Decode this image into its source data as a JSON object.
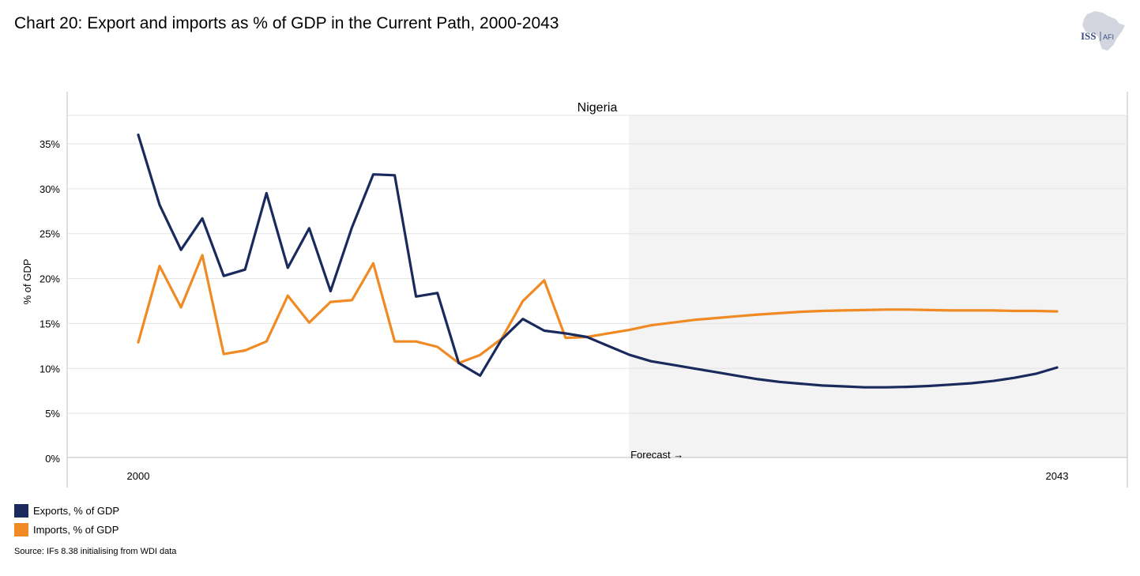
{
  "title": "Chart 20: Export and imports as % of GDP in the Current Path, 2000-2043",
  "logo": {
    "primary": "ISS",
    "secondary": "AFI"
  },
  "source": "Source: IFs 8.38 initialising from WDI data",
  "colors": {
    "exports": "#1b2a5c",
    "imports": "#f08a24",
    "forecast_shade": "#f3f3f3",
    "grid": "#e3e3e3",
    "axis": "#bfbfbf"
  },
  "chart_data": {
    "type": "line",
    "panel_title": "Nigeria",
    "ylabel": "% of GDP",
    "xlabel": "",
    "xlim": [
      2000,
      2043
    ],
    "ylim": [
      0,
      38
    ],
    "y_ticks": [
      0,
      5,
      10,
      15,
      20,
      25,
      30,
      35
    ],
    "y_tick_labels": [
      "0%",
      "5%",
      "10%",
      "15%",
      "20%",
      "25%",
      "30%",
      "35%"
    ],
    "x_tick_labels": [
      {
        "x": 2000,
        "label": "2000"
      },
      {
        "x": 2043,
        "label": "2043"
      }
    ],
    "forecast_start": 2023,
    "forecast_label": "Forecast →",
    "legend_position": "bottom-left",
    "series": [
      {
        "name": "Exports, % of GDP",
        "key": "exports",
        "x": [
          2000,
          2001,
          2002,
          2003,
          2004,
          2005,
          2006,
          2007,
          2008,
          2009,
          2010,
          2011,
          2012,
          2013,
          2014,
          2015,
          2016,
          2017,
          2018,
          2019,
          2020,
          2021,
          2022,
          2023,
          2024,
          2025,
          2026,
          2027,
          2028,
          2029,
          2030,
          2031,
          2032,
          2033,
          2034,
          2035,
          2036,
          2037,
          2038,
          2039,
          2040,
          2041,
          2042,
          2043
        ],
        "values": [
          36.0,
          28.2,
          23.2,
          26.7,
          20.3,
          21.0,
          29.5,
          21.2,
          25.6,
          18.6,
          25.7,
          31.6,
          31.5,
          18.0,
          18.4,
          10.6,
          9.2,
          13.2,
          15.5,
          14.2,
          13.9,
          13.5,
          12.5,
          11.5,
          10.8,
          10.4,
          10.0,
          9.6,
          9.2,
          8.8,
          8.5,
          8.3,
          8.1,
          8.0,
          7.9,
          7.9,
          7.95,
          8.05,
          8.2,
          8.35,
          8.6,
          8.95,
          9.4,
          10.1
        ]
      },
      {
        "name": "Imports, % of GDP",
        "key": "imports",
        "x": [
          2000,
          2001,
          2002,
          2003,
          2004,
          2005,
          2006,
          2007,
          2008,
          2009,
          2010,
          2011,
          2012,
          2013,
          2014,
          2015,
          2016,
          2017,
          2018,
          2019,
          2020,
          2021,
          2022,
          2023,
          2024,
          2025,
          2026,
          2027,
          2028,
          2029,
          2030,
          2031,
          2032,
          2033,
          2034,
          2035,
          2036,
          2037,
          2038,
          2039,
          2040,
          2041,
          2042,
          2043
        ],
        "values": [
          12.9,
          21.4,
          16.8,
          22.6,
          11.6,
          12.0,
          13.0,
          18.1,
          15.1,
          17.4,
          17.6,
          21.7,
          13.0,
          13.0,
          12.4,
          10.6,
          11.5,
          13.3,
          17.5,
          19.8,
          13.4,
          13.5,
          13.9,
          14.3,
          14.8,
          15.1,
          15.4,
          15.6,
          15.8,
          16.0,
          16.15,
          16.3,
          16.4,
          16.45,
          16.5,
          16.55,
          16.55,
          16.5,
          16.45,
          16.45,
          16.45,
          16.4,
          16.4,
          16.35
        ]
      }
    ]
  }
}
